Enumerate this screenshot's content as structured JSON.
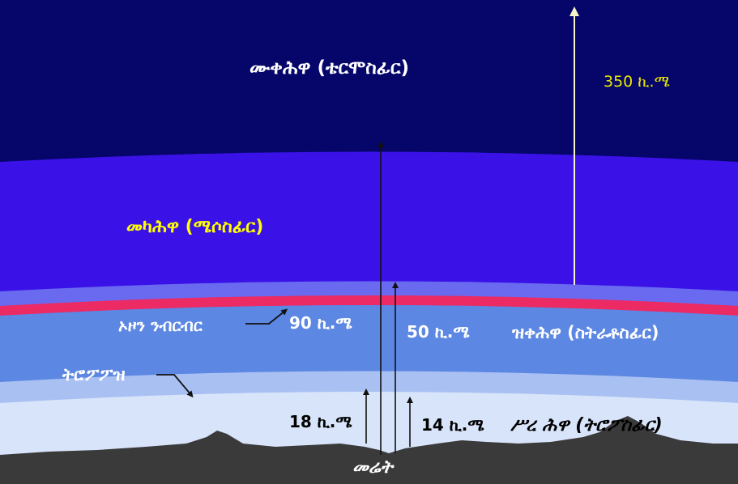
{
  "layers": {
    "thermosphere": "ሙቀሕዋ (ቴርሞስፊር)",
    "mesosphere": "መካሕዋ (ሜሶስፊር)",
    "stratosphere": "ዝቀሕዋ (ስትራቶስፊር)",
    "troposphere": "ሥረ ሕዋ (ትሮፖስፊር)"
  },
  "features": {
    "ozone_layer": "ኦዞን ንብርብር",
    "tropopause": "ትሮፖፖዝ",
    "earth": "መሬት"
  },
  "altitudes": {
    "km_350": "350 ኪ.ሜ",
    "km_90": "90 ኪ.ሜ",
    "km_50": "50 ኪ.ሜ",
    "km_18": "18 ኪ.ሜ",
    "km_14": "14 ኪ.ሜ"
  },
  "colors": {
    "thermosphere": "#05056a",
    "mesosphere": "#3a12e8",
    "stratosphere": "#5c87e2",
    "troposphere": "#d8e4fa",
    "ozone": "#ec2a63",
    "ground": "#3a3a3a",
    "arrow_dark": "#111111",
    "arrow_light": "#f4f4c8",
    "label_yellow": "#ffff00"
  }
}
